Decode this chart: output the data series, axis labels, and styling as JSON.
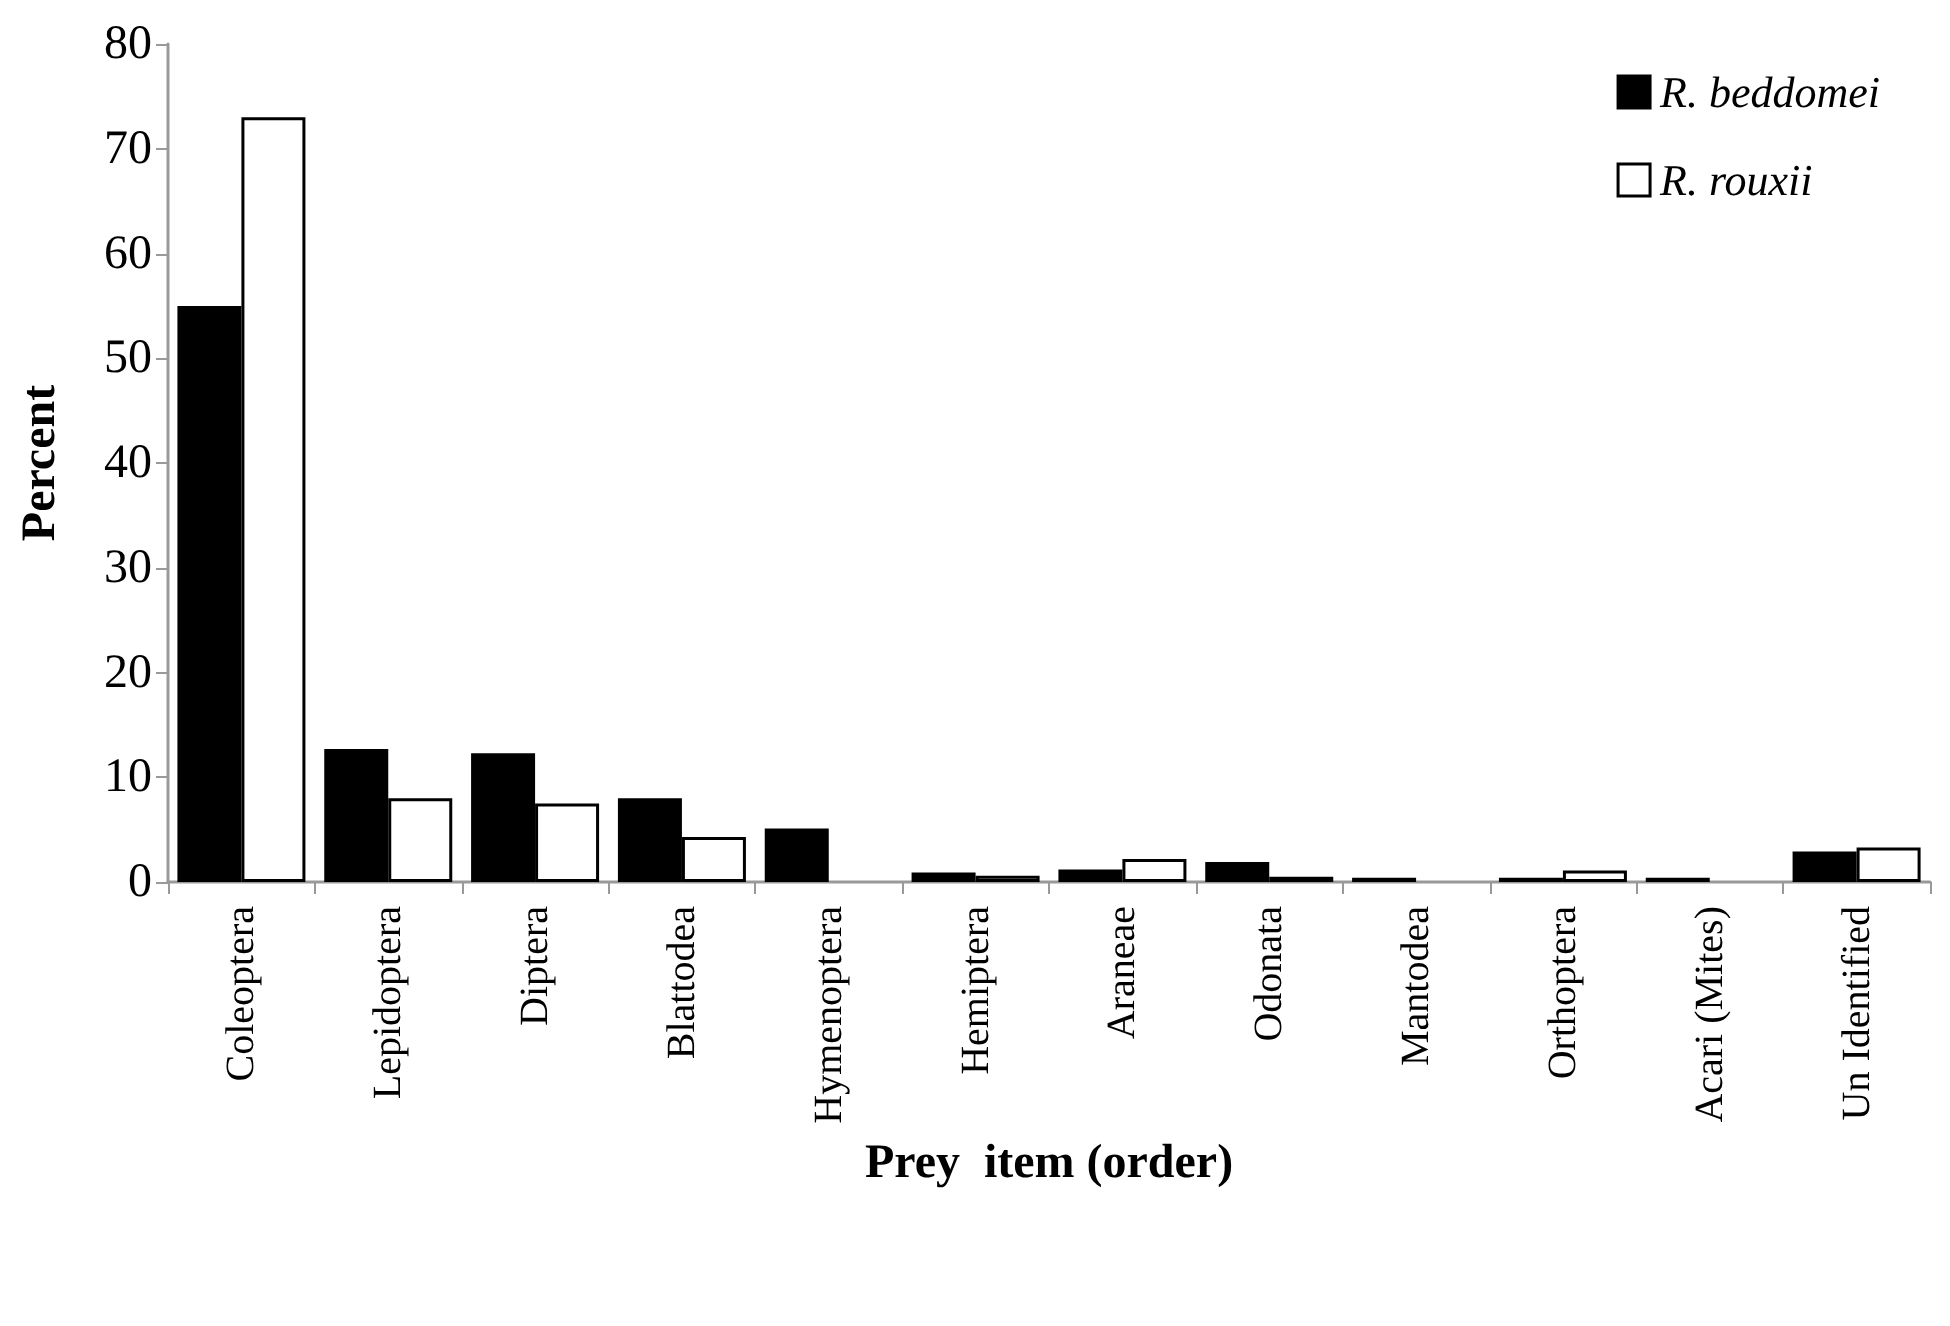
{
  "chart_data": {
    "type": "bar",
    "xlabel": "Prey  item (order)",
    "ylabel": "Percent",
    "categories": [
      "Coleoptera",
      "Lepidoptera",
      "Diptera",
      "Blattodea",
      "Hymenoptera",
      "Hemiptera",
      "Araneae",
      "Odonata",
      "Mantodea",
      "Orthoptera",
      "Acari (Mites)",
      "Un Identified"
    ],
    "series": [
      {
        "name": "R. beddomei",
        "color": "#000000",
        "values": [
          55,
          12.7,
          12.3,
          8.0,
          5.1,
          0.9,
          1.2,
          1.9,
          0.4,
          0.4,
          0.4,
          2.9
        ]
      },
      {
        "name": "R. rouxii",
        "color": "#ffffff",
        "values": [
          73,
          8.0,
          7.5,
          4.3,
          0,
          0.6,
          2.2,
          0.5,
          0,
          1.1,
          0,
          3.3
        ]
      }
    ],
    "ylim": [
      0,
      80
    ],
    "yticks": [
      0,
      10,
      20,
      30,
      40,
      50,
      60,
      70,
      80
    ],
    "grid": false,
    "legend": "top right"
  }
}
